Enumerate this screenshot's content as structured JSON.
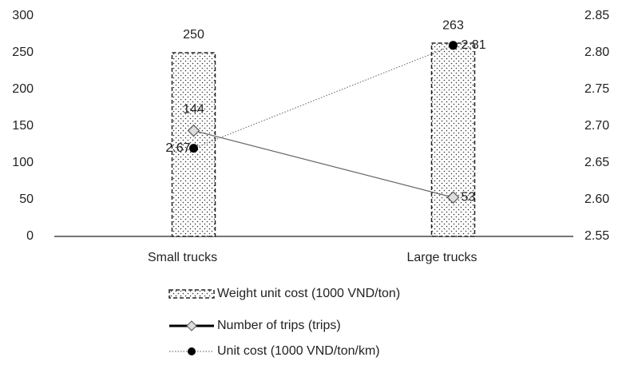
{
  "chart_data": {
    "type": "combo",
    "categories": [
      "Small trucks",
      "Large trucks"
    ],
    "series": [
      {
        "name": "Weight unit cost (1000 VND/ton)",
        "type": "bar",
        "color": "#222222",
        "values": [
          250,
          263
        ]
      },
      {
        "name": "Number of trips (trips)",
        "type": "line",
        "marker": "diamond",
        "color": "#666666",
        "values": [
          144,
          53
        ]
      },
      {
        "name": "Unit cost (1000 VND/ton/km)",
        "type": "line",
        "marker": "circle",
        "color": "#777777",
        "axis": "y2",
        "values": [
          2.67,
          2.81
        ]
      }
    ],
    "ylim": [
      0,
      300
    ],
    "yticks": [
      0,
      50,
      100,
      150,
      200,
      250,
      300
    ],
    "y2lim": [
      2.55,
      2.85
    ],
    "y2ticks": [
      2.55,
      {
        "value": 2.6,
        "label": "2.60"
      },
      2.65,
      {
        "value": 2.7,
        "label": "2.70"
      },
      2.75,
      {
        "value": 2.8,
        "label": "2.80"
      },
      2.85
    ],
    "legend": "bottom"
  }
}
